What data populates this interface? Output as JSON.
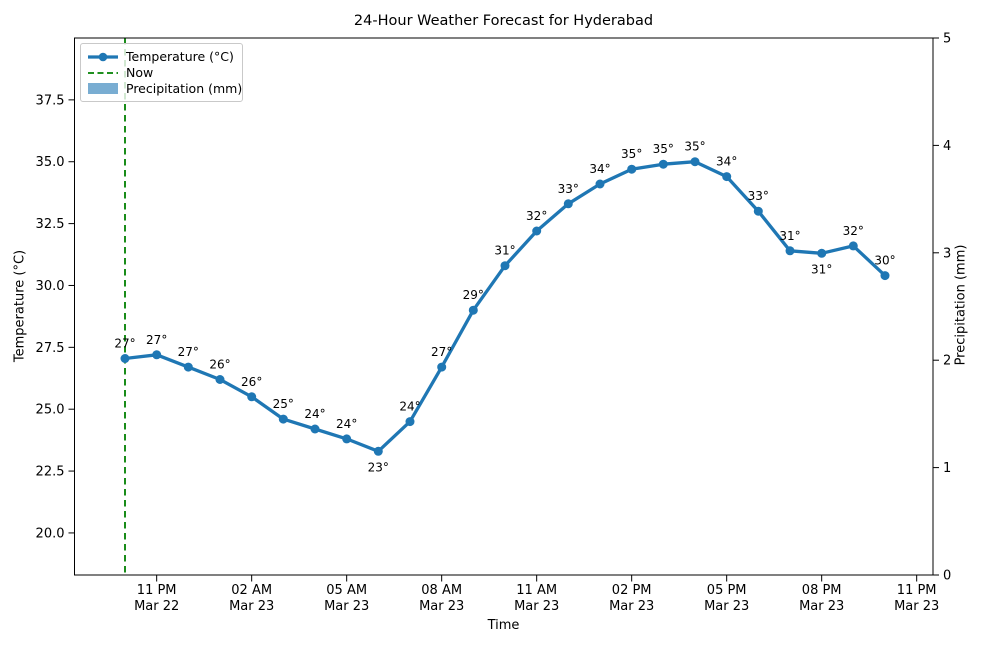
{
  "figure": {
    "title": "24-Hour Weather Forecast for Hyderabad",
    "xlabel": "Time",
    "ylabel_left": "Temperature (°C)",
    "ylabel_right": "Precipitation (mm)"
  },
  "colors": {
    "temperature_line": "#1f77b4",
    "now_line": "#008000",
    "precipitation_patch": "#79add2",
    "axis": "#000000",
    "text": "#000000"
  },
  "legend": {
    "position": "upper left",
    "items": [
      {
        "label": "Temperature (°C)",
        "type": "line-with-marker"
      },
      {
        "label": "Now",
        "type": "dashed-line"
      },
      {
        "label": "Precipitation (mm)",
        "type": "patch"
      }
    ]
  },
  "chart_data": {
    "type": "line",
    "title": "24-Hour Weather Forecast for Hyderabad",
    "xlabel": "Time",
    "ylabel_left": "Temperature (°C)",
    "ylabel_right": "Precipitation (mm)",
    "grid": false,
    "legend_position": "upper left",
    "x_hours_since_start": [
      0,
      1,
      2,
      3,
      4,
      5,
      6,
      7,
      8,
      9,
      10,
      11,
      12,
      13,
      14,
      15,
      16,
      17,
      18,
      19,
      20,
      21,
      22,
      23,
      24
    ],
    "series": [
      {
        "name": "Temperature (°C)",
        "axis": "left",
        "values": [
          27.05,
          27.2,
          26.7,
          26.2,
          25.5,
          24.6,
          24.2,
          23.8,
          23.3,
          24.5,
          26.7,
          29.0,
          30.8,
          32.2,
          33.3,
          34.1,
          34.7,
          34.9,
          35.0,
          34.4,
          33.0,
          31.4,
          31.3,
          31.6,
          30.4
        ],
        "point_labels": [
          "27°",
          "27°",
          "27°",
          "26°",
          "26°",
          "25°",
          "24°",
          "24°",
          "23°",
          "24°",
          "27°",
          "29°",
          "31°",
          "32°",
          "33°",
          "34°",
          "35°",
          "35°",
          "35°",
          "34°",
          "33°",
          "31°",
          "31°",
          "32°",
          "30°"
        ]
      },
      {
        "name": "Precipitation (mm)",
        "axis": "right",
        "values": [
          0,
          0,
          0,
          0,
          0,
          0,
          0,
          0,
          0,
          0,
          0,
          0,
          0,
          0,
          0,
          0,
          0,
          0,
          0,
          0,
          0,
          0,
          0,
          0,
          0
        ]
      }
    ],
    "now_line": {
      "label": "Now",
      "x_hour": 0
    },
    "x_ticks": [
      {
        "hour": 1,
        "time": "11 PM",
        "date": "Mar 22"
      },
      {
        "hour": 4,
        "time": "02 AM",
        "date": "Mar 23"
      },
      {
        "hour": 7,
        "time": "05 AM",
        "date": "Mar 23"
      },
      {
        "hour": 10,
        "time": "08 AM",
        "date": "Mar 23"
      },
      {
        "hour": 13,
        "time": "11 AM",
        "date": "Mar 23"
      },
      {
        "hour": 16,
        "time": "02 PM",
        "date": "Mar 23"
      },
      {
        "hour": 19,
        "time": "05 PM",
        "date": "Mar 23"
      },
      {
        "hour": 22,
        "time": "08 PM",
        "date": "Mar 23"
      },
      {
        "hour": 25,
        "time": "11 PM",
        "date": "Mar 23"
      }
    ],
    "y_left_ticks": {
      "values": [
        20.0,
        22.5,
        25.0,
        27.5,
        30.0,
        32.5,
        35.0,
        37.5
      ],
      "labels": [
        "20.0",
        "22.5",
        "25.0",
        "27.5",
        "30.0",
        "32.5",
        "35.0",
        "37.5"
      ]
    },
    "y_right_ticks": {
      "values": [
        0,
        1,
        2,
        3,
        4,
        5
      ],
      "labels": [
        "0",
        "1",
        "2",
        "3",
        "4",
        "5"
      ]
    },
    "ylim_left": [
      18.3,
      40.0
    ],
    "ylim_right": [
      0,
      5
    ],
    "labels_below_point_indices": [
      8,
      22
    ]
  }
}
